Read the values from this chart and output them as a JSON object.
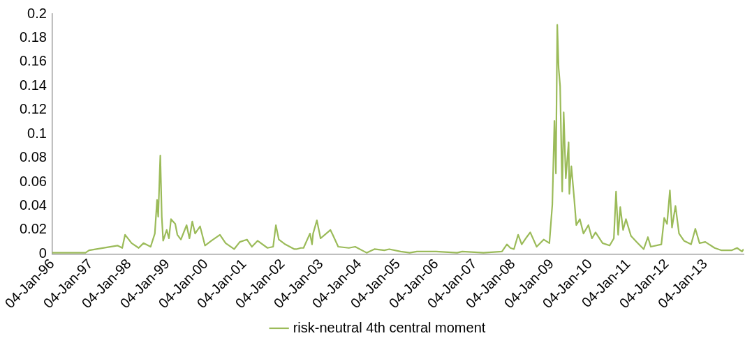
{
  "chart_data": {
    "type": "line",
    "legend": "bottom",
    "grid": false,
    "marker": "none",
    "line_style": "solid",
    "xlim": [
      "1996-01-04",
      "2014-01-03"
    ],
    "xticks": [
      {
        "value": "1996-01-04",
        "label": "04-Jan-96"
      },
      {
        "value": "1997-01-04",
        "label": "04-Jan-97"
      },
      {
        "value": "1998-01-04",
        "label": "04-Jan-98"
      },
      {
        "value": "1999-01-04",
        "label": "04-Jan-99"
      },
      {
        "value": "2000-01-04",
        "label": "04-Jan-00"
      },
      {
        "value": "2001-01-04",
        "label": "04-Jan-01"
      },
      {
        "value": "2002-01-04",
        "label": "04-Jan-02"
      },
      {
        "value": "2003-01-04",
        "label": "04-Jan-03"
      },
      {
        "value": "2004-01-04",
        "label": "04-Jan-04"
      },
      {
        "value": "2005-01-04",
        "label": "04-Jan-05"
      },
      {
        "value": "2006-01-04",
        "label": "04-Jan-06"
      },
      {
        "value": "2007-01-04",
        "label": "04-Jan-07"
      },
      {
        "value": "2008-01-04",
        "label": "04-Jan-08"
      },
      {
        "value": "2009-01-04",
        "label": "04-Jan-09"
      },
      {
        "value": "2010-01-04",
        "label": "04-Jan-10"
      },
      {
        "value": "2011-01-04",
        "label": "04-Jan-11"
      },
      {
        "value": "2012-01-04",
        "label": "04-Jan-12"
      },
      {
        "value": "2013-01-04",
        "label": "04-Jan-13"
      }
    ],
    "ylim": [
      0,
      0.2
    ],
    "yticks": [
      0,
      0.02,
      0.04,
      0.06,
      0.08,
      0.1,
      0.12,
      0.14,
      0.16,
      0.18,
      0.2
    ],
    "x": [
      "1996-01-04",
      "1996-11-15",
      "1996-12-19",
      "1997-09-15",
      "1997-10-30",
      "1997-11-26",
      "1998-01-27",
      "1998-04-04",
      "1998-05-20",
      "1998-07-27",
      "1998-09-05",
      "1998-09-26",
      "1998-10-07",
      "1998-10-27",
      "1998-11-10",
      "1998-11-23",
      "1998-12-27",
      "1999-01-17",
      "1999-02-06",
      "1999-03-18",
      "1999-04-07",
      "1999-05-11",
      "1999-07-04",
      "1999-07-31",
      "1999-08-27",
      "1999-09-23",
      "1999-11-09",
      "1999-12-26",
      "2000-02-25",
      "2000-05-16",
      "2000-07-09",
      "2000-09-28",
      "2000-11-21",
      "2001-01-28",
      "2001-03-16",
      "2001-05-09",
      "2001-08-11",
      "2001-10-04",
      "2001-10-30",
      "2001-11-27",
      "2002-01-27",
      "2002-04-24",
      "2002-05-14",
      "2002-06-23",
      "2002-07-20",
      "2002-09-19",
      "2002-10-09",
      "2002-10-19",
      "2002-11-24",
      "2002-12-29",
      "2003-02-07",
      "2003-04-02",
      "2003-04-29",
      "2003-06-15",
      "2003-09-24",
      "2003-11-23",
      "2004-03-11",
      "2004-05-24",
      "2004-08-26",
      "2004-10-12",
      "2005-01-28",
      "2005-04-25",
      "2005-07-02",
      "2006-01-01",
      "2006-07-20",
      "2006-09-06",
      "2007-03-28",
      "2007-09-19",
      "2007-11-05",
      "2007-12-08",
      "2008-01-11",
      "2008-02-20",
      "2008-03-25",
      "2008-05-11",
      "2008-06-14",
      "2008-08-14",
      "2008-10-20",
      "2008-12-13",
      "2009-01-10",
      "2009-01-30",
      "2009-02-13",
      "2009-02-26",
      "2009-03-11",
      "2009-03-25",
      "2009-04-14",
      "2009-04-28",
      "2009-05-18",
      "2009-06-14",
      "2009-06-21",
      "2009-07-10",
      "2009-08-06",
      "2009-08-26",
      "2009-09-29",
      "2009-11-02",
      "2009-12-19",
      "2010-01-22",
      "2010-02-25",
      "2010-05-03",
      "2010-07-09",
      "2010-08-18",
      "2010-09-08",
      "2010-09-28",
      "2010-10-18",
      "2010-11-14",
      "2010-12-11",
      "2011-01-28",
      "2011-03-23",
      "2011-05-29",
      "2011-07-08",
      "2011-08-04",
      "2011-11-13",
      "2011-12-10",
      "2012-01-06",
      "2012-02-02",
      "2012-02-22",
      "2012-03-26",
      "2012-04-29",
      "2012-06-15",
      "2012-08-22",
      "2012-10-01",
      "2012-11-10",
      "2013-01-04",
      "2013-04-02",
      "2013-06-08",
      "2013-09-10",
      "2013-11-02",
      "2013-12-19",
      "2014-01-03"
    ],
    "series": [
      {
        "name": "risk-neutral 4th central moment",
        "color": "#9bbb59",
        "values": [
          0.001,
          0.001,
          0.003,
          0.007,
          0.005,
          0.016,
          0.009,
          0.005,
          0.009,
          0.006,
          0.017,
          0.045,
          0.031,
          0.082,
          0.031,
          0.011,
          0.02,
          0.013,
          0.029,
          0.025,
          0.016,
          0.012,
          0.024,
          0.013,
          0.027,
          0.017,
          0.023,
          0.007,
          0.011,
          0.016,
          0.009,
          0.004,
          0.01,
          0.012,
          0.006,
          0.011,
          0.005,
          0.006,
          0.024,
          0.012,
          0.008,
          0.004,
          0.004,
          0.005,
          0.005,
          0.017,
          0.008,
          0.017,
          0.028,
          0.013,
          0.016,
          0.02,
          0.015,
          0.006,
          0.005,
          0.006,
          0.001,
          0.004,
          0.003,
          0.004,
          0.002,
          0.001,
          0.002,
          0.002,
          0.001,
          0.002,
          0.001,
          0.002,
          0.008,
          0.005,
          0.004,
          0.016,
          0.008,
          0.014,
          0.018,
          0.006,
          0.012,
          0.009,
          0.041,
          0.111,
          0.067,
          0.191,
          0.155,
          0.14,
          0.052,
          0.118,
          0.063,
          0.093,
          0.05,
          0.073,
          0.046,
          0.024,
          0.029,
          0.017,
          0.024,
          0.013,
          0.018,
          0.009,
          0.007,
          0.013,
          0.052,
          0.016,
          0.039,
          0.02,
          0.029,
          0.015,
          0.01,
          0.004,
          0.014,
          0.006,
          0.008,
          0.03,
          0.025,
          0.053,
          0.022,
          0.04,
          0.017,
          0.011,
          0.008,
          0.021,
          0.009,
          0.01,
          0.005,
          0.003,
          0.003,
          0.005,
          0.002,
          0.004
        ]
      }
    ]
  }
}
